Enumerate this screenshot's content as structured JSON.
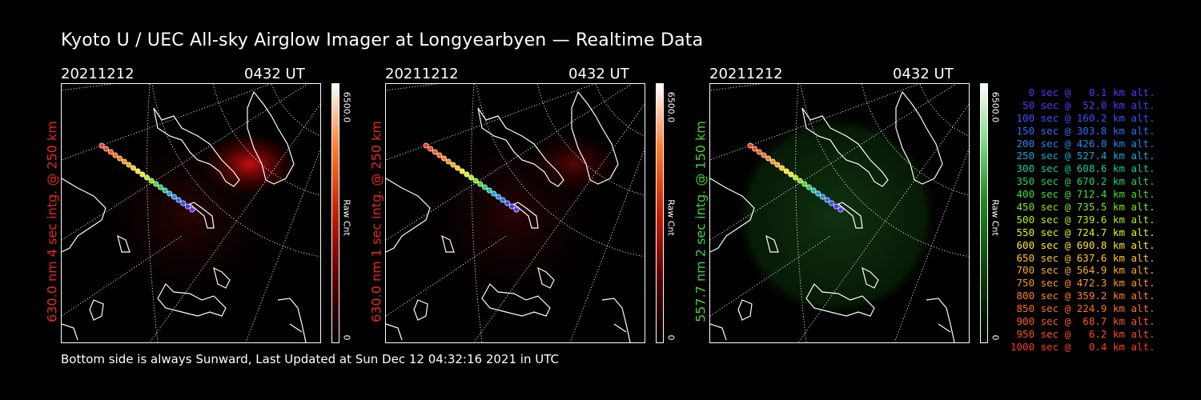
{
  "title": "Kyoto U / UEC All-sky Airglow Imager at Longyearbyen — Realtime Data",
  "footer": "Bottom side is always Sunward, Last Updated at Sun Dec 12 04:32:16 2021 in UTC",
  "panels": [
    {
      "date": "20211212",
      "time": "0432 UT",
      "side_label": "630.0 nm 4 sec intg. @ 250 km",
      "label_color": "#e8281e",
      "scale_max": "6500.0",
      "scale_min": "0",
      "scale_unit": "Raw Cnt",
      "colormap": "red"
    },
    {
      "date": "20211212",
      "time": "0432 UT",
      "side_label": "630.0 nm 1 sec intg. @ 250 km",
      "label_color": "#e8281e",
      "scale_max": "6500.0",
      "scale_min": "0",
      "scale_unit": "Raw Cnt",
      "colormap": "red"
    },
    {
      "date": "20211212",
      "time": "0432 UT",
      "side_label": "557.7 nm 2 sec intg. @ 150 km",
      "label_color": "#3fd23f",
      "scale_max": "6500.0",
      "scale_min": "0",
      "scale_unit": "Raw Cnt",
      "colormap": "green"
    }
  ],
  "legend": [
    {
      "text": "   0 sec @   0.1 km alt.",
      "color": "#5a32ff"
    },
    {
      "text": "  50 sec @  52.0 km alt.",
      "color": "#4a3cff"
    },
    {
      "text": " 100 sec @ 160.2 km alt.",
      "color": "#3c50ff"
    },
    {
      "text": " 150 sec @ 303.8 km alt.",
      "color": "#2a6eff"
    },
    {
      "text": " 200 sec @ 426.0 km alt.",
      "color": "#1e8cf0"
    },
    {
      "text": " 250 sec @ 527.4 km alt.",
      "color": "#14aad2"
    },
    {
      "text": " 300 sec @ 608.6 km alt.",
      "color": "#14c8a0"
    },
    {
      "text": " 350 sec @ 670.2 km alt.",
      "color": "#1ed264"
    },
    {
      "text": " 400 sec @ 712.4 km alt.",
      "color": "#46dc32"
    },
    {
      "text": " 450 sec @ 735.5 km alt.",
      "color": "#82e61e"
    },
    {
      "text": " 500 sec @ 739.6 km alt.",
      "color": "#b4f01e"
    },
    {
      "text": " 550 sec @ 724.7 km alt.",
      "color": "#e6f01e"
    },
    {
      "text": " 600 sec @ 690.8 km alt.",
      "color": "#ffe61e"
    },
    {
      "text": " 650 sec @ 637.6 km alt.",
      "color": "#ffc81e"
    },
    {
      "text": " 700 sec @ 564.9 km alt.",
      "color": "#ffaa1e"
    },
    {
      "text": " 750 sec @ 472.3 km alt.",
      "color": "#ff961e"
    },
    {
      "text": " 800 sec @ 359.2 km alt.",
      "color": "#ff821e"
    },
    {
      "text": " 850 sec @ 224.9 km alt.",
      "color": "#ff6e1e"
    },
    {
      "text": " 900 sec @  68.7 km alt.",
      "color": "#ff5a1e"
    },
    {
      "text": " 950 sec @   6.2 km alt.",
      "color": "#ff4b1e"
    },
    {
      "text": "1000 sec @   0.4 km alt.",
      "color": "#ff3c1e"
    }
  ]
}
